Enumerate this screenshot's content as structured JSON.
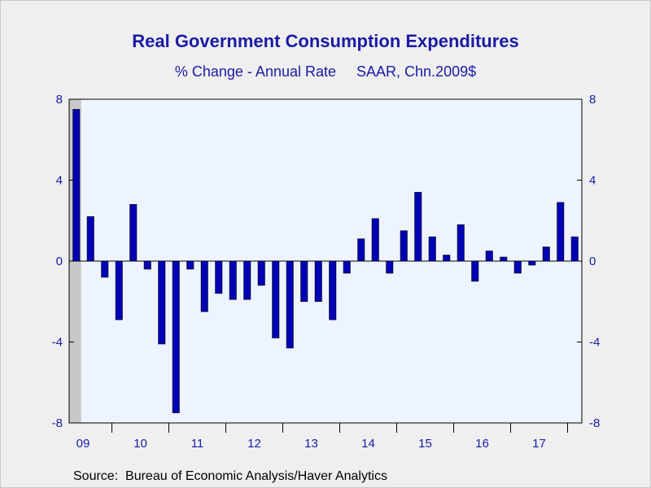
{
  "chart_data": {
    "type": "bar",
    "title": "Real Government Consumption Expenditures",
    "subtitle": "% Change - Annual Rate     SAAR, Chn.2009$",
    "source": "Source:  Bureau of Economic Analysis/Haver Analytics",
    "ylim": [
      -8,
      8
    ],
    "y_ticks": [
      8,
      4,
      0,
      -4,
      -8
    ],
    "x_tick_labels": [
      "09",
      "10",
      "11",
      "12",
      "13",
      "14",
      "15",
      "16",
      "17"
    ],
    "recession_shading": {
      "start_quarter_index": 0,
      "end_quarter_index": 0.5
    },
    "grid": false,
    "colors": {
      "bar": "#0000b4",
      "plot_bg": "#edf4ff",
      "recession": "#c8c8c8",
      "text": "#1a1aa6"
    },
    "categories": [
      "2009Q2",
      "2009Q3",
      "2009Q4",
      "2010Q1",
      "2010Q2",
      "2010Q3",
      "2010Q4",
      "2011Q1",
      "2011Q2",
      "2011Q3",
      "2011Q4",
      "2012Q1",
      "2012Q2",
      "2012Q3",
      "2012Q4",
      "2013Q1",
      "2013Q2",
      "2013Q3",
      "2013Q4",
      "2014Q1",
      "2014Q2",
      "2014Q3",
      "2014Q4",
      "2015Q1",
      "2015Q2",
      "2015Q3",
      "2015Q4",
      "2016Q1",
      "2016Q2",
      "2016Q3",
      "2016Q4",
      "2017Q1",
      "2017Q2",
      "2017Q3",
      "2017Q4",
      "2018Q1"
    ],
    "values": [
      7.5,
      2.2,
      -0.8,
      -2.9,
      2.8,
      -0.4,
      -4.1,
      -7.5,
      -0.4,
      -2.5,
      -1.6,
      -1.9,
      -1.9,
      -1.2,
      -3.8,
      -4.3,
      -2.0,
      -2.0,
      -2.9,
      -0.6,
      1.1,
      2.1,
      -0.6,
      1.5,
      3.4,
      1.2,
      0.3,
      1.8,
      -1.0,
      0.5,
      0.2,
      -0.6,
      -0.2,
      0.7,
      2.9,
      1.2
    ]
  }
}
